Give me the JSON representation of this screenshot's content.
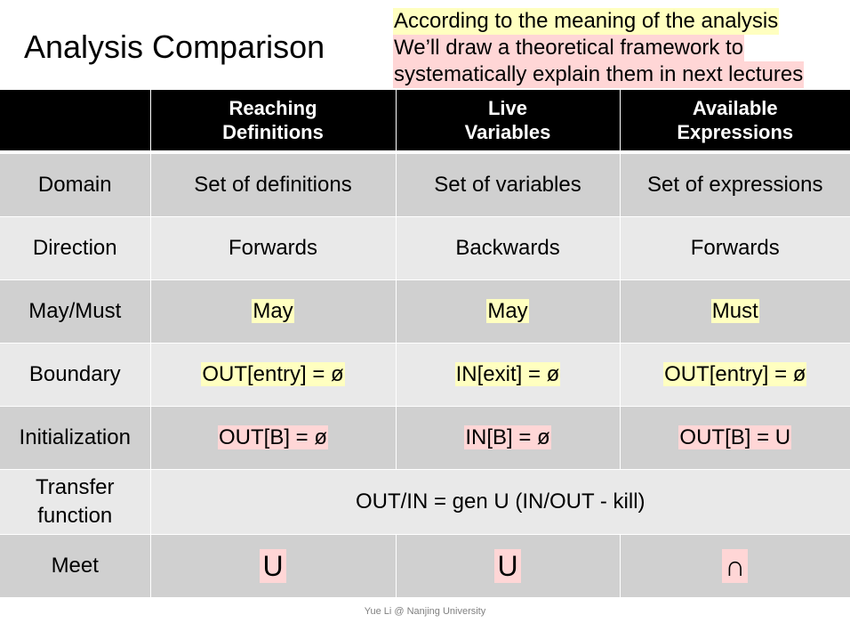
{
  "title": "Analysis Comparison",
  "note": {
    "lines": [
      "According to the meaning of the analysis",
      "We’ll draw a theoretical framework to",
      "systematically explain them in next lectures"
    ]
  },
  "table": {
    "headers": [
      {
        "line1": "",
        "line2": ""
      },
      {
        "line1": "Reaching",
        "line2": "Definitions"
      },
      {
        "line1": "Live",
        "line2": "Variables"
      },
      {
        "line1": "Available",
        "line2": "Expressions"
      }
    ],
    "rows": {
      "domain": {
        "label": "Domain",
        "values": [
          "Set of definitions",
          "Set of variables",
          "Set of expressions"
        ]
      },
      "direction": {
        "label": "Direction",
        "values": [
          "Forwards",
          "Backwards",
          "Forwards"
        ]
      },
      "may_must": {
        "label": "May/Must",
        "values": [
          "May",
          "May",
          "Must"
        ]
      },
      "boundary": {
        "label": "Boundary",
        "values": [
          "OUT[entry] = ø",
          "IN[exit] = ø",
          "OUT[entry] = ø"
        ]
      },
      "initialization": {
        "label": "Initialization",
        "values": [
          "OUT[B] = ø",
          "IN[B] = ø",
          "OUT[B] = U"
        ]
      },
      "transfer": {
        "label_line1": "Transfer",
        "label_line2": "function",
        "value": "OUT/IN = gen U (IN/OUT - kill)"
      },
      "meet": {
        "label": "Meet",
        "values": [
          "U",
          "U",
          "∩"
        ]
      }
    }
  },
  "footer": "Yue Li @ Nanjing University",
  "colors": {
    "header_bg": "#000000",
    "row_dark": "#d0d0d0",
    "row_light": "#e9e9e9",
    "highlight_yellow": "#ffffc0",
    "highlight_pink": "#ffd6d6"
  }
}
